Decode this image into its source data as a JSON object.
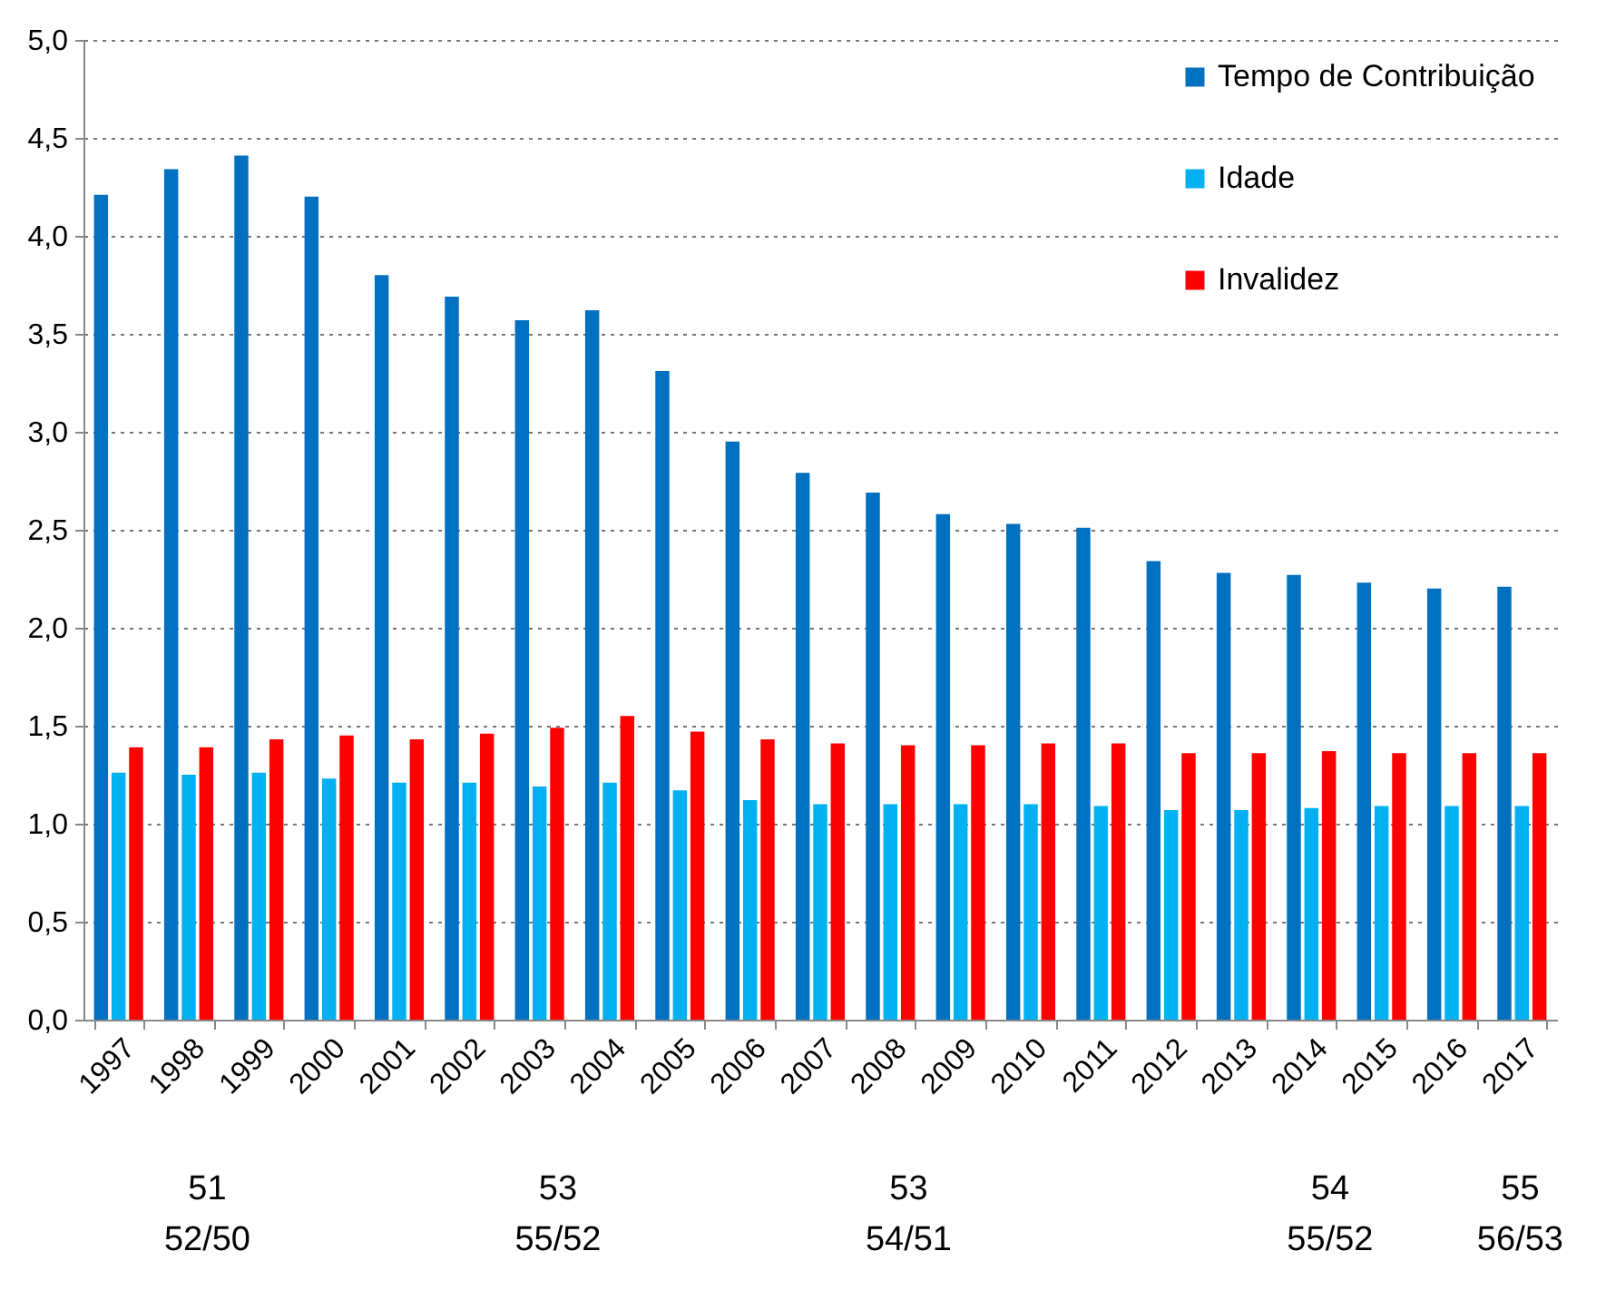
{
  "chart_data": {
    "type": "bar",
    "categories": [
      "1997",
      "1998",
      "1999",
      "2000",
      "2001",
      "2002",
      "2003",
      "2004",
      "2005",
      "2006",
      "2007",
      "2008",
      "2009",
      "2010",
      "2011",
      "2012",
      "2013",
      "2014",
      "2015",
      "2016",
      "2017"
    ],
    "series": [
      {
        "name": "Tempo de Contribuição",
        "color": "#0070c0",
        "values": [
          4.21,
          4.34,
          4.41,
          4.2,
          3.8,
          3.69,
          3.57,
          3.62,
          3.31,
          2.95,
          2.79,
          2.69,
          2.58,
          2.53,
          2.51,
          2.34,
          2.28,
          2.27,
          2.23,
          2.2,
          2.21
        ]
      },
      {
        "name": "Idade",
        "color": "#00b0f0",
        "values": [
          1.26,
          1.25,
          1.26,
          1.23,
          1.21,
          1.21,
          1.19,
          1.21,
          1.17,
          1.12,
          1.1,
          1.1,
          1.1,
          1.1,
          1.09,
          1.07,
          1.07,
          1.08,
          1.09,
          1.09,
          1.09
        ]
      },
      {
        "name": "Invalidez",
        "color": "#ff0000",
        "values": [
          1.39,
          1.39,
          1.43,
          1.45,
          1.43,
          1.46,
          1.49,
          1.55,
          1.47,
          1.43,
          1.41,
          1.4,
          1.4,
          1.41,
          1.41,
          1.36,
          1.36,
          1.37,
          1.36,
          1.36,
          1.36
        ]
      }
    ],
    "ylim": [
      0,
      5
    ],
    "yticks": [
      {
        "value": 0,
        "label": "0,0"
      },
      {
        "value": 0.5,
        "label": "0,5"
      },
      {
        "value": 1,
        "label": "1,0"
      },
      {
        "value": 1.5,
        "label": "1,5"
      },
      {
        "value": 2,
        "label": "2,0"
      },
      {
        "value": 2.5,
        "label": "2,5"
      },
      {
        "value": 3,
        "label": "3,0"
      },
      {
        "value": 3.5,
        "label": "3,5"
      },
      {
        "value": 4,
        "label": "4,0"
      },
      {
        "value": 4.5,
        "label": "4,5"
      },
      {
        "value": 5,
        "label": "5,0"
      }
    ],
    "grid": "y",
    "legend": "top right",
    "annotations": [
      "51\n52/50",
      "53\n55/52",
      "53\n54/51",
      "54\n55/52",
      "55\n56/53"
    ]
  }
}
